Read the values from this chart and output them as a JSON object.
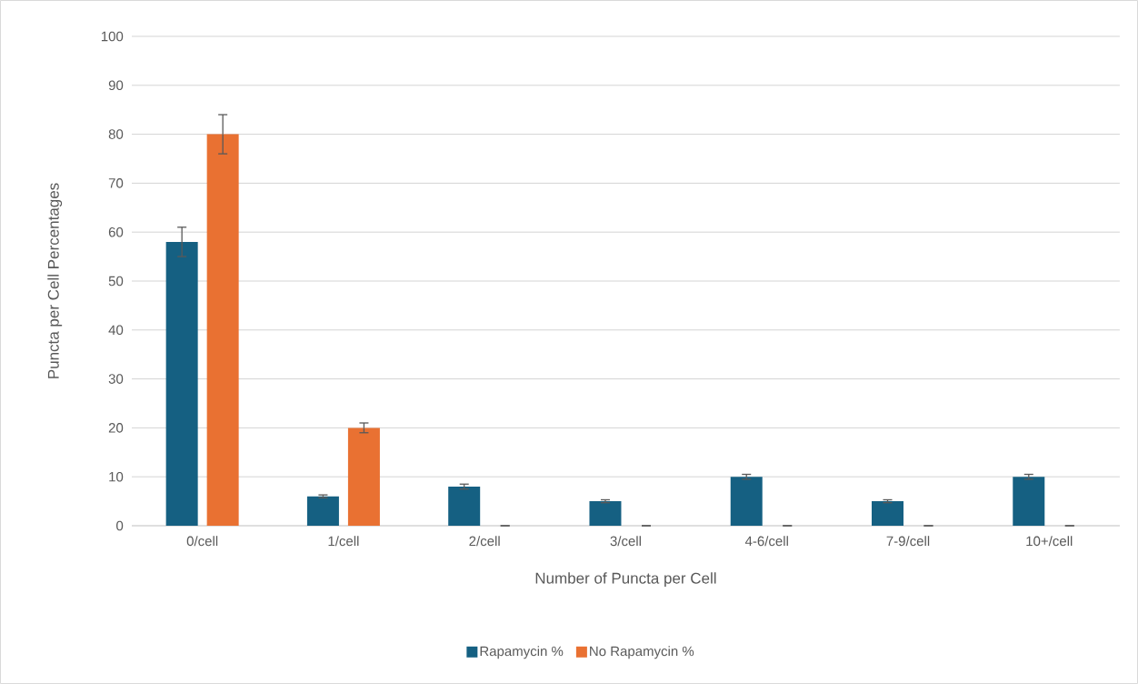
{
  "chart_data": {
    "type": "bar",
    "xlabel": "Number of Puncta per Cell",
    "ylabel": "Puncta per Cell Percentages",
    "categories": [
      "0/cell",
      "1/cell",
      "2/cell",
      "3/cell",
      "4-6/cell",
      "7-9/cell",
      "10+/cell"
    ],
    "series": [
      {
        "name": "Rapamycin %",
        "color": "#156082",
        "values": [
          58,
          6,
          8,
          5,
          10,
          5,
          10
        ],
        "errors": [
          3,
          0.3,
          0.5,
          0.3,
          0.5,
          0.3,
          0.5
        ]
      },
      {
        "name": "No Rapamycin %",
        "color": "#e97132",
        "values": [
          80,
          20,
          0,
          0,
          0,
          0,
          0
        ],
        "errors": [
          4,
          1,
          0,
          0,
          0,
          0,
          0
        ]
      }
    ],
    "ylim": [
      0,
      100
    ],
    "yticks": [
      0,
      10,
      20,
      30,
      40,
      50,
      60,
      70,
      80,
      90,
      100
    ],
    "grid": "y",
    "legend": "bottom"
  }
}
